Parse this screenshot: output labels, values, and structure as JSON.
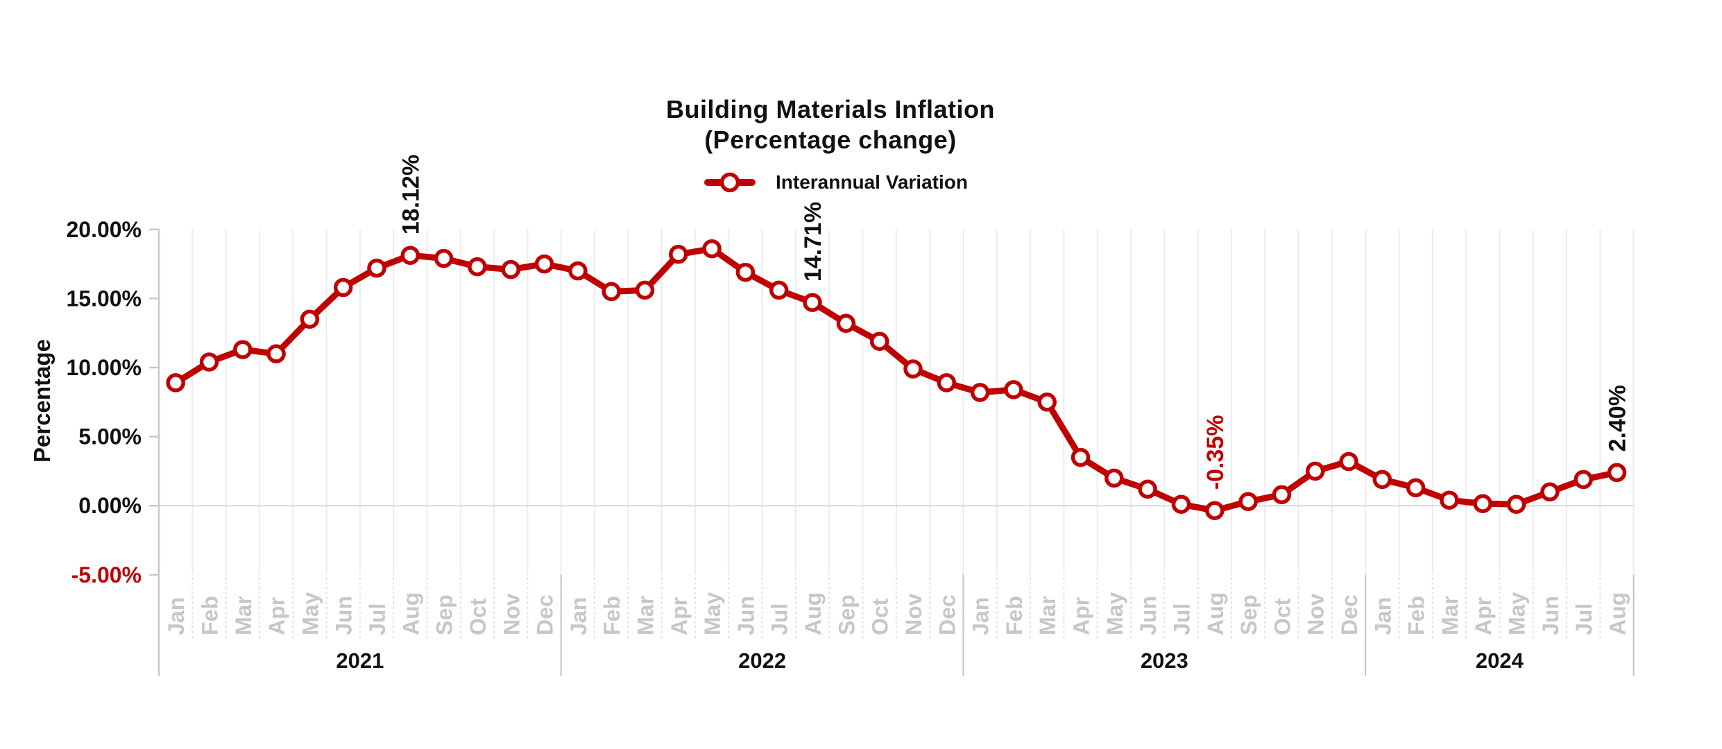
{
  "page": {
    "background": "#ffffff"
  },
  "colors": {
    "accent_red": "#c00000",
    "text_black": "#111111",
    "month_label_gray": "#c7c7c7",
    "gridline": "#ececec",
    "zero_line": "#d8d8d8",
    "axis_line": "#c9c9c9",
    "year_separator": "#c3c3c3",
    "below_axis_dash": "#dedede",
    "marker_fill": "#ffffff"
  },
  "chart_data": {
    "type": "line",
    "title": "Building Materials Inflation",
    "subtitle": "(Percentage change)",
    "ylabel": "Percentage",
    "xlabel": "",
    "legend_position": "top-center",
    "grid": "vertical month gridlines + horizontal zero line only",
    "ylim": [
      -5,
      20
    ],
    "y_ticks": [
      {
        "value": 20,
        "label": "20.00%",
        "color": "#111111"
      },
      {
        "value": 15,
        "label": "15.00%",
        "color": "#111111"
      },
      {
        "value": 10,
        "label": "10.00%",
        "color": "#111111"
      },
      {
        "value": 5,
        "label": "5.00%",
        "color": "#111111"
      },
      {
        "value": 0,
        "label": "0.00%",
        "color": "#111111"
      },
      {
        "value": -5,
        "label": "-5.00%",
        "color": "#c00000"
      }
    ],
    "x_years": [
      {
        "label": "2021",
        "months": [
          "Jan",
          "Feb",
          "Mar",
          "Apr",
          "May",
          "Jun",
          "Jul",
          "Aug",
          "Sep",
          "Oct",
          "Nov",
          "Dec"
        ]
      },
      {
        "label": "2022",
        "months": [
          "Jan",
          "Feb",
          "Mar",
          "Apr",
          "May",
          "Jun",
          "Jul",
          "Aug",
          "Sep",
          "Oct",
          "Nov",
          "Dec"
        ]
      },
      {
        "label": "2023",
        "months": [
          "Jan",
          "Feb",
          "Mar",
          "Apr",
          "May",
          "Jun",
          "Jul",
          "Aug",
          "Sep",
          "Oct",
          "Nov",
          "Dec"
        ]
      },
      {
        "label": "2024",
        "months": [
          "Jan",
          "Feb",
          "Mar",
          "Apr",
          "May",
          "Jun",
          "Jul",
          "Aug"
        ]
      }
    ],
    "series": [
      {
        "name": "Interannual Variation",
        "color": "#c00000",
        "marker": "open-circle",
        "values": [
          8.9,
          10.4,
          11.3,
          11.0,
          13.5,
          15.8,
          17.2,
          18.12,
          17.9,
          17.3,
          17.1,
          17.5,
          17.0,
          15.5,
          15.6,
          18.2,
          18.6,
          16.9,
          15.6,
          14.71,
          13.2,
          11.9,
          9.9,
          8.9,
          8.2,
          8.4,
          7.5,
          3.5,
          2.0,
          1.2,
          0.1,
          -0.35,
          0.3,
          0.8,
          2.5,
          3.2,
          1.9,
          1.3,
          0.4,
          0.15,
          0.1,
          1.0,
          1.9,
          2.4
        ]
      }
    ],
    "annotations": [
      {
        "x_index": 7,
        "month": "Aug",
        "year": "2021",
        "text": "18.12%",
        "color": "#111111"
      },
      {
        "x_index": 19,
        "month": "Aug",
        "year": "2022",
        "text": "14.71%",
        "color": "#111111"
      },
      {
        "x_index": 31,
        "month": "Aug",
        "year": "2023",
        "text": "-0.35%",
        "color": "#c00000"
      },
      {
        "x_index": 43,
        "month": "Aug",
        "year": "2024",
        "text": "2.40%",
        "color": "#111111"
      }
    ]
  }
}
